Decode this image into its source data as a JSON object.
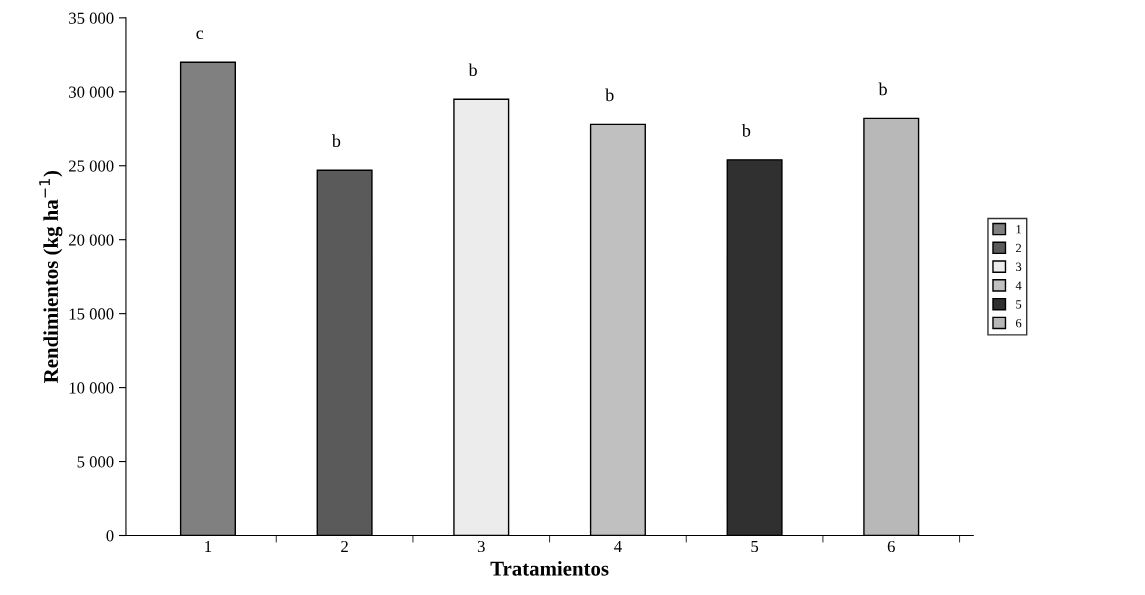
{
  "chart_data": {
    "type": "bar",
    "xlabel": "Tratamientos",
    "ylabel": "Rendimientos (kg ha$^{−1}$)",
    "categories": [
      "1",
      "2",
      "3",
      "4",
      "5",
      "6"
    ],
    "series": [
      {
        "name": "1",
        "color": "#808080",
        "values": [
          32000,
          null,
          null,
          null,
          null,
          null
        ]
      },
      {
        "name": "2",
        "color": "#5a5a5a",
        "values": [
          null,
          24700,
          null,
          null,
          null,
          null
        ]
      },
      {
        "name": "3",
        "color": "#ececec",
        "values": [
          null,
          null,
          29500,
          null,
          null,
          null
        ]
      },
      {
        "name": "4",
        "color": "#c0c0c0",
        "values": [
          null,
          null,
          null,
          27800,
          null,
          null
        ]
      },
      {
        "name": "5",
        "color": "#303030",
        "values": [
          null,
          null,
          null,
          null,
          25400,
          null
        ]
      },
      {
        "name": "6",
        "color": "#b8b8b8",
        "values": [
          null,
          null,
          null,
          null,
          null,
          28200
        ]
      }
    ],
    "ylim": [
      0,
      35000
    ],
    "yticks": [
      0,
      {
        "value": 5000,
        "label": "5 000"
      },
      {
        "value": 10000,
        "label": "10 000"
      },
      {
        "value": 15000,
        "label": "15 000"
      },
      {
        "value": 20000,
        "label": "20 000"
      },
      {
        "value": 25000,
        "label": "25 000"
      },
      {
        "value": 30000,
        "label": "30 000"
      },
      {
        "value": 35000,
        "label": "35 000"
      }
    ],
    "annotations": [
      {
        "text": "c",
        "x": "1",
        "y": 32000
      },
      {
        "text": "b",
        "x": "2",
        "y": 24700
      },
      {
        "text": "b",
        "x": "3",
        "y": 29500
      },
      {
        "text": "b",
        "x": "4",
        "y": 27800
      },
      {
        "text": "b",
        "x": "5",
        "y": 25400
      },
      {
        "text": "b",
        "x": "6",
        "y": 28200
      }
    ],
    "legend": "right",
    "grid": false
  }
}
